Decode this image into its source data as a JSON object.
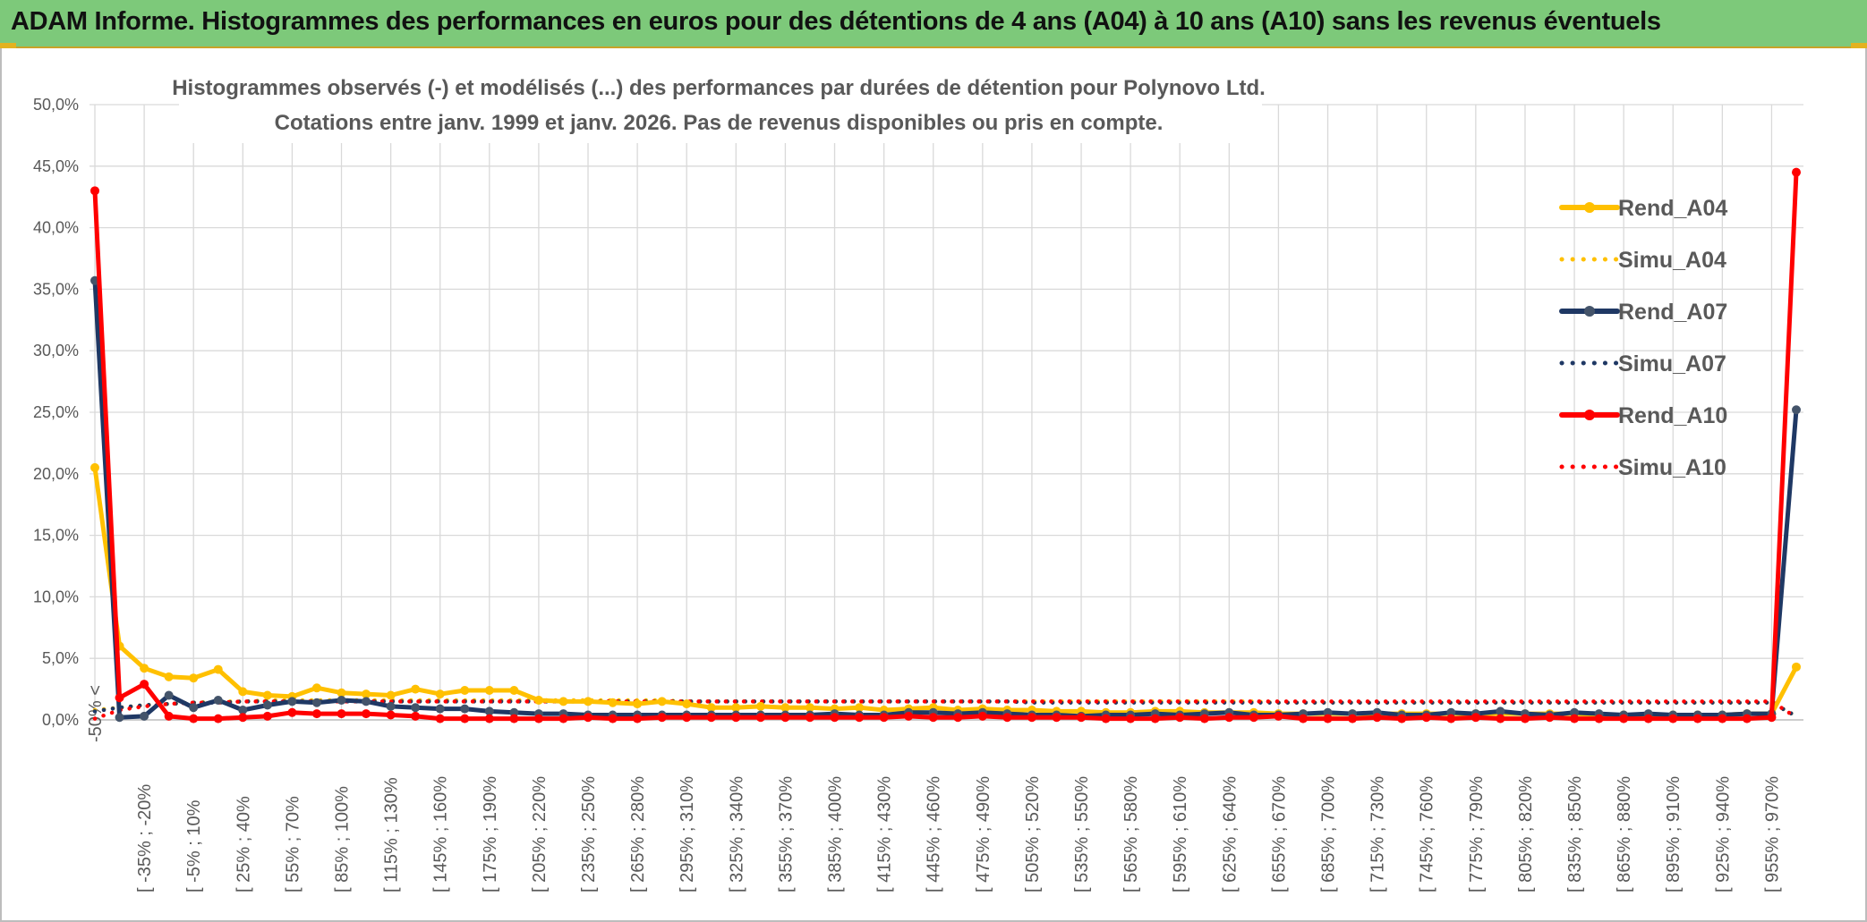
{
  "header": {
    "title": "ADAM Informe. Histogrammes des performances en euros pour des détentions de 4 ans (A04) à 10 ans (A10) sans les revenus éventuels"
  },
  "chart_data": {
    "type": "line",
    "title": "Histogrammes observés (-) et modélisés (...) des performances par durées de détention pour Polynovo Ltd.",
    "subtitle": "Cotations entre janv. 1999 et janv. 2026. Pas de revenus disponibles ou pris en compte.",
    "ylim": [
      0,
      50
    ],
    "yticks": [
      "0,0%",
      "5,0%",
      "10,0%",
      "15,0%",
      "20,0%",
      "25,0%",
      "30,0%",
      "35,0%",
      "40,0%",
      "45,0%",
      "50,0%"
    ],
    "xtick_labels": [
      "-50% <",
      "[ -35% ; -20%",
      "[ -5% ; 10%",
      "[ 25% ; 40%",
      "[ 55% ; 70%",
      "[ 85% ; 100%",
      "[ 115% ; 130%",
      "[ 145% ; 160%",
      "[ 175% ; 190%",
      "[ 205% ; 220%",
      "[ 235% ; 250%",
      "[ 265% ; 280%",
      "[ 295% ; 310%",
      "[ 325% ; 340%",
      "[ 355% ; 370%",
      "[ 385% ; 400%",
      "[ 415% ; 430%",
      "[ 445% ; 460%",
      "[ 475% ; 490%",
      "[ 505% ; 520%",
      "[ 535% ; 550%",
      "[ 565% ; 580%",
      "[ 595% ; 610%",
      "[ 625% ; 640%",
      "[ 655% ; 670%",
      "[ 685% ; 700%",
      "[ 715% ; 730%",
      "[ 745% ; 760%",
      "[ 775% ; 790%",
      "[ 805% ; 820%",
      "[ 835% ; 850%",
      "[ 865% ; 880%",
      "[ 895% ; 910%",
      "[ 925% ; 940%",
      "[ 955% ; 970%"
    ],
    "n_points": 70,
    "series": [
      {
        "name": "Rend_A04",
        "style": "solid",
        "color": "#ffc000",
        "markers": true,
        "values": [
          20.5,
          6.0,
          4.2,
          3.5,
          3.4,
          4.1,
          2.3,
          2.0,
          1.9,
          2.6,
          2.2,
          2.1,
          2.0,
          2.5,
          2.1,
          2.4,
          2.4,
          2.4,
          1.6,
          1.5,
          1.5,
          1.4,
          1.3,
          1.5,
          1.3,
          1.0,
          1.0,
          1.1,
          1.0,
          1.0,
          0.9,
          1.0,
          0.8,
          0.9,
          1.0,
          0.8,
          0.9,
          0.8,
          0.8,
          0.7,
          0.7,
          0.6,
          0.6,
          0.7,
          0.7,
          0.6,
          0.6,
          0.6,
          0.5,
          0.5,
          0.5,
          0.5,
          0.5,
          0.5,
          0.5,
          0.5,
          0.5,
          0.5,
          0.5,
          0.5,
          0.5,
          0.4,
          0.4,
          0.4,
          0.4,
          0.4,
          0.4,
          0.5,
          0.5,
          4.3
        ]
      },
      {
        "name": "Simu_A04",
        "style": "dotted",
        "color": "#ffc000",
        "markers": false,
        "values": [
          0.8,
          1.0,
          1.2,
          1.3,
          1.4,
          1.5,
          1.5,
          1.6,
          1.6,
          1.6,
          1.6,
          1.6,
          1.6,
          1.6,
          1.6,
          1.6,
          1.6,
          1.6,
          1.6,
          1.6,
          1.6,
          1.6,
          1.6,
          1.6,
          1.5,
          1.5,
          1.5,
          1.5,
          1.5,
          1.5,
          1.5,
          1.5,
          1.5,
          1.5,
          1.5,
          1.5,
          1.5,
          1.5,
          1.5,
          1.5,
          1.5,
          1.5,
          1.5,
          1.5,
          1.5,
          1.5,
          1.5,
          1.5,
          1.4,
          1.4,
          1.4,
          1.4,
          1.4,
          1.4,
          1.4,
          1.4,
          1.4,
          1.4,
          1.4,
          1.4,
          1.4,
          1.4,
          1.4,
          1.4,
          1.4,
          1.4,
          1.4,
          1.4,
          1.4,
          0.3
        ]
      },
      {
        "name": "Rend_A07",
        "style": "solid",
        "color": "#1f3864",
        "markers": true,
        "values": [
          35.7,
          0.2,
          0.3,
          2.0,
          1.0,
          1.6,
          0.8,
          1.2,
          1.5,
          1.4,
          1.6,
          1.5,
          1.1,
          1.0,
          0.9,
          0.9,
          0.7,
          0.6,
          0.5,
          0.5,
          0.4,
          0.4,
          0.4,
          0.4,
          0.4,
          0.4,
          0.4,
          0.4,
          0.4,
          0.4,
          0.5,
          0.4,
          0.4,
          0.6,
          0.6,
          0.5,
          0.6,
          0.5,
          0.4,
          0.4,
          0.3,
          0.4,
          0.4,
          0.5,
          0.4,
          0.5,
          0.6,
          0.4,
          0.4,
          0.5,
          0.6,
          0.5,
          0.6,
          0.4,
          0.4,
          0.6,
          0.5,
          0.7,
          0.5,
          0.4,
          0.6,
          0.5,
          0.4,
          0.5,
          0.4,
          0.4,
          0.4,
          0.5,
          0.5,
          25.2
        ]
      },
      {
        "name": "Simu_A07",
        "style": "dotted",
        "color": "#1f3864",
        "markers": false,
        "values": [
          0.7,
          1.0,
          1.2,
          1.3,
          1.4,
          1.4,
          1.5,
          1.5,
          1.5,
          1.5,
          1.5,
          1.5,
          1.5,
          1.5,
          1.5,
          1.5,
          1.5,
          1.5,
          1.5,
          1.5,
          1.5,
          1.5,
          1.5,
          1.5,
          1.5,
          1.5,
          1.5,
          1.5,
          1.5,
          1.5,
          1.5,
          1.5,
          1.5,
          1.5,
          1.5,
          1.5,
          1.5,
          1.5,
          1.4,
          1.4,
          1.4,
          1.4,
          1.4,
          1.4,
          1.4,
          1.4,
          1.4,
          1.4,
          1.4,
          1.4,
          1.4,
          1.4,
          1.4,
          1.4,
          1.4,
          1.4,
          1.4,
          1.4,
          1.4,
          1.4,
          1.4,
          1.4,
          1.4,
          1.4,
          1.4,
          1.4,
          1.4,
          1.4,
          1.4,
          0.3
        ]
      },
      {
        "name": "Rend_A10",
        "style": "solid",
        "color": "#ff0000",
        "markers": true,
        "values": [
          43.0,
          1.8,
          2.9,
          0.3,
          0.1,
          0.1,
          0.2,
          0.3,
          0.6,
          0.5,
          0.5,
          0.5,
          0.4,
          0.3,
          0.1,
          0.1,
          0.1,
          0.1,
          0.1,
          0.1,
          0.2,
          0.1,
          0.1,
          0.2,
          0.2,
          0.2,
          0.2,
          0.2,
          0.2,
          0.2,
          0.2,
          0.2,
          0.2,
          0.3,
          0.2,
          0.2,
          0.3,
          0.2,
          0.2,
          0.2,
          0.2,
          0.1,
          0.1,
          0.1,
          0.2,
          0.1,
          0.2,
          0.2,
          0.3,
          0.1,
          0.1,
          0.1,
          0.2,
          0.1,
          0.2,
          0.1,
          0.2,
          0.1,
          0.1,
          0.2,
          0.1,
          0.1,
          0.1,
          0.1,
          0.1,
          0.1,
          0.1,
          0.1,
          0.2,
          44.5
        ]
      },
      {
        "name": "Simu_A10",
        "style": "dotted",
        "color": "#ff0000",
        "markers": false,
        "values": [
          0.1,
          0.8,
          1.1,
          1.3,
          1.4,
          1.4,
          1.5,
          1.5,
          1.5,
          1.5,
          1.5,
          1.5,
          1.5,
          1.5,
          1.5,
          1.5,
          1.5,
          1.5,
          1.5,
          1.5,
          1.5,
          1.5,
          1.5,
          1.5,
          1.5,
          1.5,
          1.5,
          1.5,
          1.5,
          1.5,
          1.5,
          1.5,
          1.5,
          1.5,
          1.5,
          1.5,
          1.5,
          1.5,
          1.5,
          1.5,
          1.5,
          1.5,
          1.5,
          1.5,
          1.5,
          1.5,
          1.5,
          1.5,
          1.5,
          1.5,
          1.5,
          1.5,
          1.5,
          1.5,
          1.5,
          1.5,
          1.5,
          1.5,
          1.5,
          1.5,
          1.5,
          1.5,
          1.5,
          1.5,
          1.5,
          1.5,
          1.5,
          1.5,
          1.5,
          0.2
        ]
      }
    ],
    "legend_position": "right"
  }
}
